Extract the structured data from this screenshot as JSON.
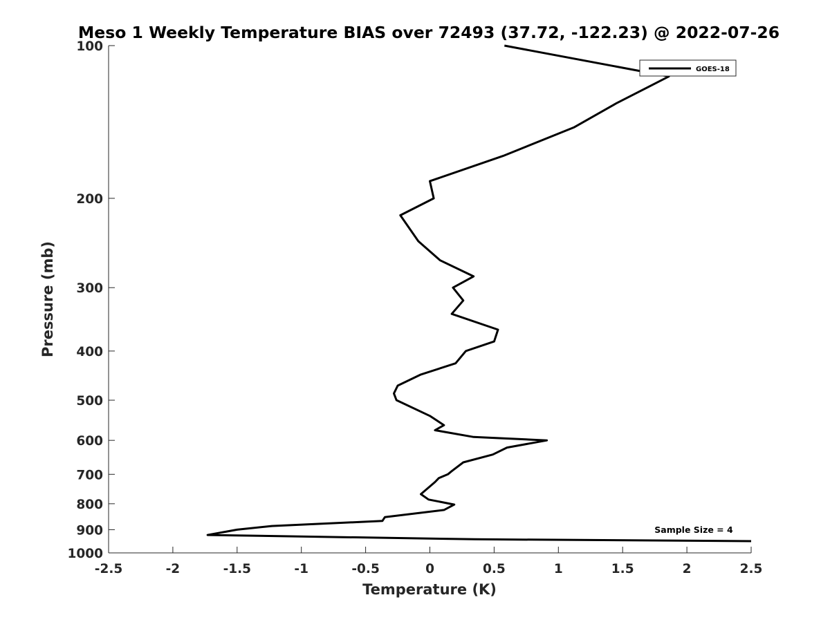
{
  "chart_data": {
    "type": "line",
    "title": "Meso 1 Weekly Temperature BIAS over 72493 (37.72, -122.23) @ 2022-07-26",
    "xlabel": "Temperature (K)",
    "ylabel": "Pressure (mb)",
    "xlim": [
      -2.5,
      2.5
    ],
    "ylim": [
      100,
      1000
    ],
    "y_scale": "log",
    "y_reversed": true,
    "grid": false,
    "legend_position": "top-right",
    "x_ticks": [
      -2.5,
      -2,
      -1.5,
      -1,
      -0.5,
      0,
      0.5,
      1,
      1.5,
      2,
      2.5
    ],
    "x_tick_labels": [
      "-2.5",
      "-2",
      "-1.5",
      "-1",
      "-0.5",
      "0",
      "0.5",
      "1",
      "1.5",
      "2",
      "2.5"
    ],
    "y_ticks": [
      100,
      200,
      300,
      400,
      500,
      600,
      700,
      800,
      900,
      1000
    ],
    "y_tick_labels": [
      "100",
      "200",
      "300",
      "400",
      "500",
      "600",
      "700",
      "800",
      "900",
      "1000"
    ],
    "series": [
      {
        "name": "GOES-18",
        "color": "#000000",
        "points": [
          [
            0.58,
            100
          ],
          [
            1.86,
            115
          ],
          [
            1.45,
            130
          ],
          [
            1.12,
            145
          ],
          [
            0.57,
            165
          ],
          [
            0.0,
            185
          ],
          [
            0.03,
            200
          ],
          [
            -0.23,
            216
          ],
          [
            -0.09,
            243
          ],
          [
            0.08,
            265
          ],
          [
            0.34,
            285
          ],
          [
            0.18,
            300
          ],
          [
            0.26,
            318
          ],
          [
            0.17,
            338
          ],
          [
            0.53,
            363
          ],
          [
            0.5,
            383
          ],
          [
            0.28,
            400
          ],
          [
            0.2,
            423
          ],
          [
            -0.07,
            445
          ],
          [
            -0.25,
            468
          ],
          [
            -0.28,
            485
          ],
          [
            -0.26,
            500
          ],
          [
            0.0,
            537
          ],
          [
            0.11,
            560
          ],
          [
            0.04,
            573
          ],
          [
            0.34,
            591
          ],
          [
            0.91,
            600
          ],
          [
            0.6,
            620
          ],
          [
            0.49,
            640
          ],
          [
            0.26,
            663
          ],
          [
            0.17,
            690
          ],
          [
            0.14,
            700
          ],
          [
            0.07,
            712
          ],
          [
            0.04,
            725
          ],
          [
            -0.07,
            766
          ],
          [
            -0.01,
            785
          ],
          [
            0.19,
            803
          ],
          [
            0.11,
            823
          ],
          [
            -0.35,
            850
          ],
          [
            -0.37,
            865
          ],
          [
            -1.23,
            885
          ],
          [
            -1.5,
            900
          ],
          [
            -1.73,
            922
          ],
          [
            0.35,
            940
          ],
          [
            2.5,
            948
          ]
        ]
      }
    ],
    "annotations": [
      "Sample Size = 4"
    ]
  }
}
